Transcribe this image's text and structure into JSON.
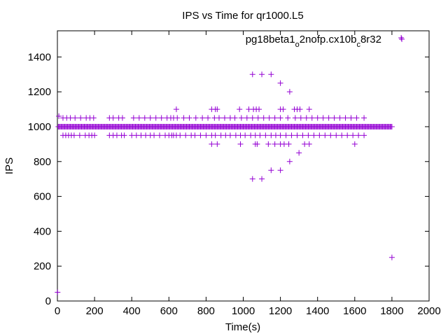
{
  "chart_data": {
    "type": "scatter",
    "title": "IPS vs Time for qr1000.L5",
    "xlabel": "Time(s)",
    "ylabel": "IPS",
    "xlim": [
      0,
      2000
    ],
    "ylim": [
      0,
      1550
    ],
    "xticks": [
      0,
      200,
      400,
      600,
      800,
      1000,
      1200,
      1400,
      1600,
      1800,
      2000
    ],
    "yticks": [
      0,
      200,
      400,
      600,
      800,
      1000,
      1200,
      1400
    ],
    "grid": false,
    "legend_position": "top-right",
    "marker": "+",
    "series": [
      {
        "name": "pg18beta1_o2nofp.cx10b_c8r32",
        "legend_parts": [
          "pg18beta1",
          "o",
          "2nofp.cx10b",
          "c",
          "8r32"
        ],
        "color": "#9400d3",
        "dense_band": {
          "x_start": 5,
          "x_end": 1800,
          "x_step": 5,
          "y": 1000
        },
        "points": [
          [
            1,
            50
          ],
          [
            8,
            1060
          ],
          [
            1800,
            250
          ],
          [
            1850,
            1510
          ],
          [
            30,
            950
          ],
          [
            45,
            950
          ],
          [
            60,
            950
          ],
          [
            75,
            950
          ],
          [
            90,
            950
          ],
          [
            120,
            950
          ],
          [
            150,
            950
          ],
          [
            170,
            950
          ],
          [
            185,
            950
          ],
          [
            200,
            950
          ],
          [
            280,
            950
          ],
          [
            300,
            950
          ],
          [
            320,
            950
          ],
          [
            345,
            950
          ],
          [
            360,
            950
          ],
          [
            400,
            950
          ],
          [
            425,
            950
          ],
          [
            450,
            950
          ],
          [
            475,
            950
          ],
          [
            500,
            950
          ],
          [
            520,
            950
          ],
          [
            550,
            950
          ],
          [
            580,
            950
          ],
          [
            600,
            950
          ],
          [
            615,
            950
          ],
          [
            625,
            950
          ],
          [
            640,
            950
          ],
          [
            660,
            950
          ],
          [
            690,
            950
          ],
          [
            720,
            950
          ],
          [
            740,
            950
          ],
          [
            770,
            950
          ],
          [
            800,
            950
          ],
          [
            830,
            950
          ],
          [
            850,
            950
          ],
          [
            880,
            950
          ],
          [
            905,
            950
          ],
          [
            930,
            950
          ],
          [
            960,
            950
          ],
          [
            985,
            950
          ],
          [
            1010,
            950
          ],
          [
            1040,
            950
          ],
          [
            1065,
            950
          ],
          [
            1090,
            950
          ],
          [
            1120,
            950
          ],
          [
            1150,
            950
          ],
          [
            1175,
            950
          ],
          [
            1200,
            950
          ],
          [
            1230,
            950
          ],
          [
            1260,
            950
          ],
          [
            1290,
            950
          ],
          [
            1320,
            950
          ],
          [
            1350,
            950
          ],
          [
            1380,
            950
          ],
          [
            1410,
            950
          ],
          [
            1440,
            950
          ],
          [
            1470,
            950
          ],
          [
            1500,
            950
          ],
          [
            1530,
            950
          ],
          [
            1560,
            950
          ],
          [
            1590,
            950
          ],
          [
            1620,
            950
          ],
          [
            1650,
            950
          ],
          [
            30,
            1050
          ],
          [
            50,
            1050
          ],
          [
            70,
            1050
          ],
          [
            95,
            1050
          ],
          [
            125,
            1050
          ],
          [
            155,
            1050
          ],
          [
            175,
            1050
          ],
          [
            195,
            1050
          ],
          [
            280,
            1050
          ],
          [
            300,
            1050
          ],
          [
            330,
            1050
          ],
          [
            350,
            1050
          ],
          [
            410,
            1050
          ],
          [
            440,
            1050
          ],
          [
            470,
            1050
          ],
          [
            500,
            1050
          ],
          [
            530,
            1050
          ],
          [
            560,
            1050
          ],
          [
            590,
            1050
          ],
          [
            610,
            1050
          ],
          [
            625,
            1050
          ],
          [
            645,
            1050
          ],
          [
            680,
            1050
          ],
          [
            710,
            1050
          ],
          [
            745,
            1050
          ],
          [
            780,
            1050
          ],
          [
            810,
            1050
          ],
          [
            845,
            1050
          ],
          [
            870,
            1050
          ],
          [
            900,
            1050
          ],
          [
            930,
            1050
          ],
          [
            955,
            1050
          ],
          [
            990,
            1050
          ],
          [
            1020,
            1050
          ],
          [
            1050,
            1050
          ],
          [
            1080,
            1050
          ],
          [
            1110,
            1050
          ],
          [
            1140,
            1050
          ],
          [
            1170,
            1050
          ],
          [
            1200,
            1050
          ],
          [
            1240,
            1050
          ],
          [
            1280,
            1050
          ],
          [
            1310,
            1050
          ],
          [
            1340,
            1050
          ],
          [
            1370,
            1050
          ],
          [
            1400,
            1050
          ],
          [
            1430,
            1050
          ],
          [
            1460,
            1050
          ],
          [
            1490,
            1050
          ],
          [
            1520,
            1050
          ],
          [
            1550,
            1050
          ],
          [
            1580,
            1050
          ],
          [
            1610,
            1050
          ],
          [
            1650,
            1050
          ],
          [
            640,
            1100
          ],
          [
            830,
            1100
          ],
          [
            850,
            1100
          ],
          [
            860,
            1100
          ],
          [
            980,
            1100
          ],
          [
            1030,
            1100
          ],
          [
            1055,
            1100
          ],
          [
            1070,
            1100
          ],
          [
            1085,
            1100
          ],
          [
            1200,
            1100
          ],
          [
            1215,
            1100
          ],
          [
            1275,
            1100
          ],
          [
            1290,
            1100
          ],
          [
            1305,
            1100
          ],
          [
            1355,
            1100
          ],
          [
            830,
            900
          ],
          [
            860,
            900
          ],
          [
            985,
            900
          ],
          [
            1065,
            900
          ],
          [
            1075,
            900
          ],
          [
            1135,
            900
          ],
          [
            1170,
            900
          ],
          [
            1200,
            900
          ],
          [
            1220,
            900
          ],
          [
            1245,
            900
          ],
          [
            1330,
            900
          ],
          [
            1355,
            900
          ],
          [
            1600,
            900
          ],
          [
            1050,
            1300
          ],
          [
            1100,
            1300
          ],
          [
            1150,
            1300
          ],
          [
            1200,
            1250
          ],
          [
            1250,
            1200
          ],
          [
            1300,
            850
          ],
          [
            1250,
            800
          ],
          [
            1150,
            750
          ],
          [
            1200,
            750
          ],
          [
            1050,
            700
          ],
          [
            1100,
            700
          ]
        ]
      }
    ]
  }
}
